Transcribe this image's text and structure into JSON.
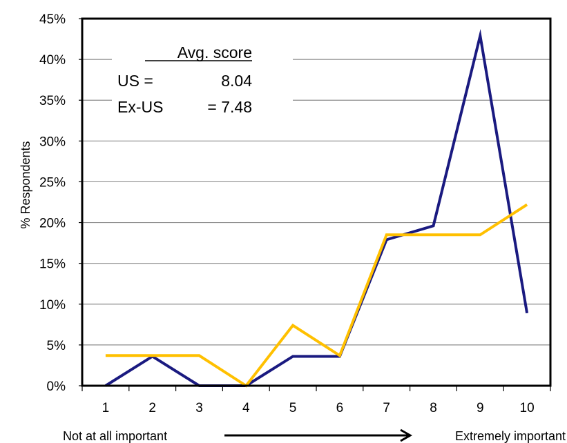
{
  "chart_data": {
    "type": "line",
    "categories": [
      "1",
      "2",
      "3",
      "4",
      "5",
      "6",
      "7",
      "8",
      "9",
      "10"
    ],
    "series": [
      {
        "name": "US",
        "color": "#1a1a80",
        "values": [
          0,
          3.6,
          0,
          0,
          3.6,
          3.6,
          17.9,
          19.6,
          42.9,
          8.9
        ]
      },
      {
        "name": "Ex-US",
        "color": "#ffc000",
        "values": [
          3.7,
          3.7,
          3.7,
          0,
          7.4,
          3.7,
          18.5,
          18.5,
          18.5,
          22.2
        ]
      }
    ],
    "ylim": [
      0,
      45
    ],
    "yticks": [
      "0%",
      "5%",
      "10%",
      "15%",
      "20%",
      "25%",
      "30%",
      "35%",
      "40%",
      "45%"
    ],
    "ylabel": "% Respondents",
    "xlabel_left": "Not at all important",
    "xlabel_right": "Extremely important",
    "grid": true,
    "annotation": {
      "header": "Avg. score",
      "rows": [
        {
          "label": "US =",
          "value": "8.04"
        },
        {
          "label": "Ex-US",
          "value": "= 7.48"
        }
      ]
    }
  }
}
